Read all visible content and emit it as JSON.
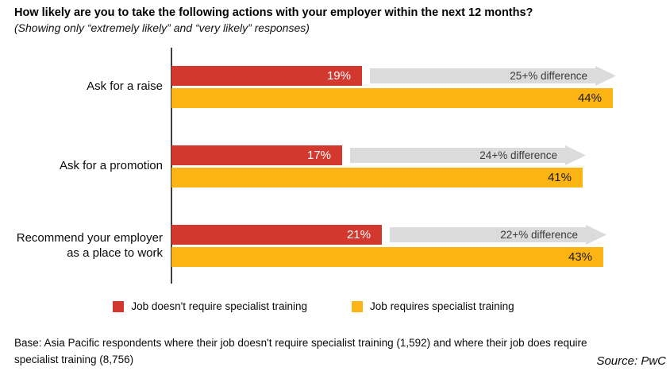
{
  "title": "How likely are you to take the following actions with your employer within the next 12 months?",
  "subtitle": "(Showing only “extremely likely” and “very likely” responses)",
  "chart_data": {
    "type": "bar",
    "orientation": "horizontal",
    "title": "How likely are you to take the following actions with your employer within the next 12 months?",
    "subtitle": "(Showing only “extremely likely” and “very likely” responses)",
    "categories": [
      "Ask for a raise",
      "Ask for a promotion",
      "Recommend your employer as a place to work"
    ],
    "series": [
      {
        "name": "Job doesn't require specialist training",
        "color": "#d3382f",
        "values": [
          19,
          17,
          21
        ]
      },
      {
        "name": "Job requires specialist training",
        "color": "#fcb415",
        "values": [
          44,
          41,
          43
        ]
      }
    ],
    "annotations": [
      "25+% difference",
      "24+% difference",
      "22+% difference"
    ],
    "annotation_color": "#dbdbdb",
    "value_suffix": "%",
    "xlim": [
      0,
      45.5
    ],
    "grid": false,
    "legend_position": "bottom"
  },
  "rows": [
    {
      "category": "Ask for a raise",
      "red_label": "19%",
      "yellow_label": "44%",
      "difference_label": "25+% difference"
    },
    {
      "category": "Ask for a promotion",
      "red_label": "17%",
      "yellow_label": "41%",
      "difference_label": "24+% difference"
    },
    {
      "category": "Recommend your employer\nas a place to work",
      "red_label": "21%",
      "yellow_label": "43%",
      "difference_label": "22+% difference"
    }
  ],
  "legend": {
    "items": [
      "Job doesn't require specialist training",
      "Job requires specialist training"
    ]
  },
  "footer": {
    "base": "Base: Asia Pacific respondents where their job doesn't require specialist training (1,592) and where their job does require\nspecialist training (8,756)",
    "source": "Source: PwC"
  }
}
